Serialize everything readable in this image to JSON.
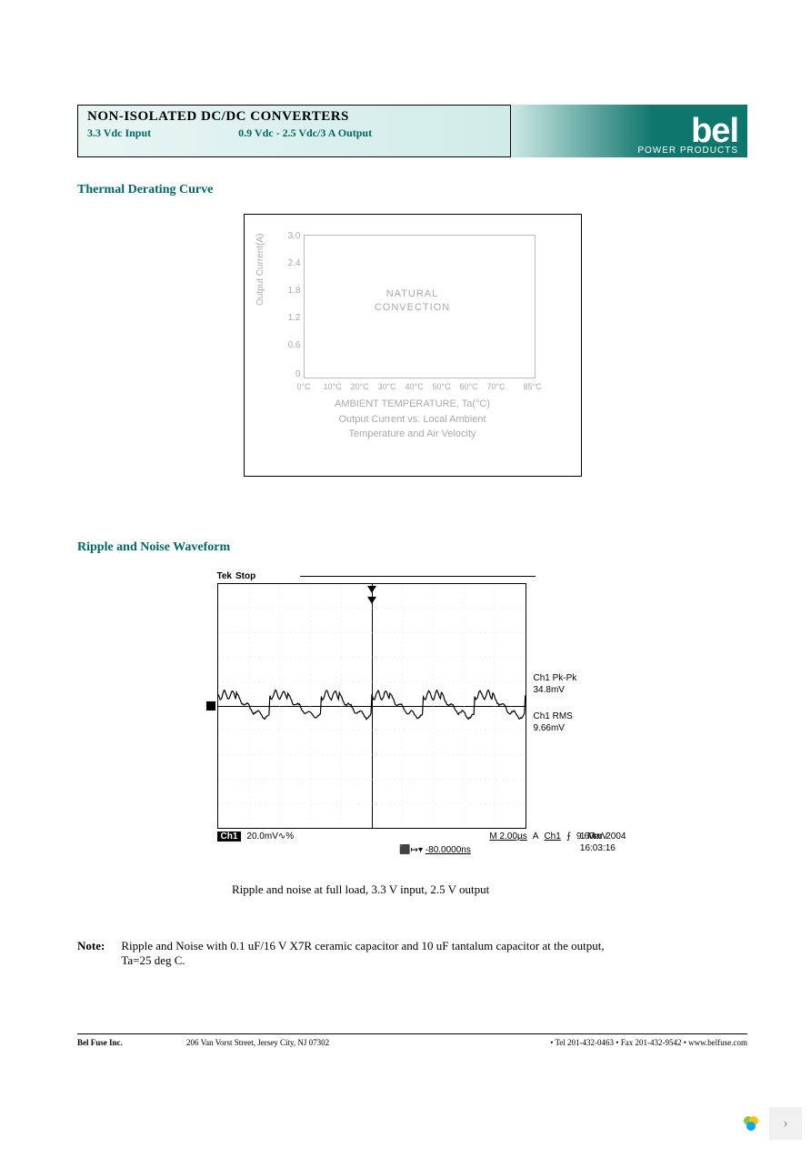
{
  "header": {
    "title": "NON-ISOLATED DC/DC CONVERTERS",
    "subtitle_left": "3.3 Vdc  Input",
    "subtitle_right": "0.9 Vdc - 2.5 Vdc/3 A Output",
    "logo_text": "bel",
    "logo_sub": "POWER PRODUCTS"
  },
  "section1": {
    "title": "Thermal Derating Curve",
    "chart": {
      "ylabel": "Output Current(A)",
      "yticks": [
        "3.0",
        "2.4",
        "1.8",
        "1.2",
        "0.6",
        "0"
      ],
      "xticks": [
        "0°C",
        "10°C",
        "20°C",
        "30°C",
        "40°C",
        "50°C",
        "60°C",
        "70°C",
        "85°C"
      ],
      "center_text1": "NATURAL",
      "center_text2": "CONVECTION",
      "xlabel1": "AMBIENT TEMPERATURE, Ta(°C)",
      "xlabel2": "Output Current vs. Local Ambient",
      "xlabel3": "Temperature and Air Velocity",
      "border_color": "#bbbbbb",
      "text_color": "#aaaaaa"
    }
  },
  "section2": {
    "title": "Ripple and Noise Waveform",
    "scope": {
      "brand": "Tek",
      "status": "Stop",
      "ch_box": "Ch1",
      "ch_scale": "20.0mV∿%",
      "timebase_label": "M",
      "timebase": "2.00µs",
      "trig_a": "A",
      "trig_ch": "Ch1",
      "trig_level": "9.60mV",
      "delay_icon": "⬛↦▾",
      "delay": "-80.0000ns",
      "side1_l1": "Ch1 Pk-Pk",
      "side1_l2": "34.8mV",
      "side2_l1": "Ch1 RMS",
      "side2_l2": "9.66mV",
      "date": "1 Mar 2004",
      "time": "16:03:16",
      "waveform_amplitude": 24,
      "waveform_cycles": 6
    },
    "caption": "Ripple and noise at full load, 3.3 V input, 2.5 V output"
  },
  "note": {
    "label": "Note:",
    "text": "Ripple and Noise with 0.1 uF/16 V X7R ceramic capacitor and 10 uF tantalum capacitor at the output, Ta=25 deg C."
  },
  "footer": {
    "company": "Bel Fuse Inc.",
    "address": "206 Van Vorst Street, Jersey City, NJ  07302",
    "contact": "• Tel 201-432-0463 • Fax 201-432-9542 • www.belfuse.com"
  }
}
